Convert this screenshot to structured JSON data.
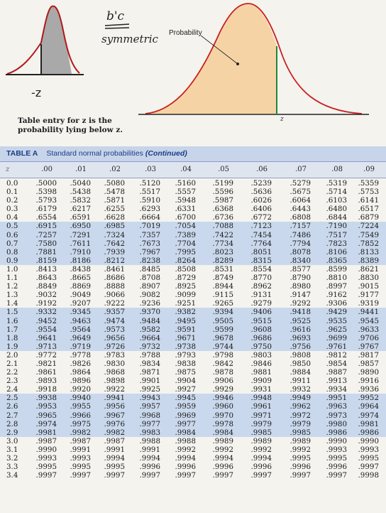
{
  "handwritten_annotation": "b'c symmetric",
  "left_sketch_label": "-z",
  "chart_labels": {
    "probability_label": "Probability",
    "z_label": "z"
  },
  "caption": {
    "line1": "Table entry for z is the",
    "line2": "probability lying below z."
  },
  "table": {
    "title_label": "TABLE A",
    "title_text": "Standard normal probabilities",
    "title_continued": "(Continued)",
    "z_header": "z",
    "columns": [
      ".00",
      ".01",
      ".02",
      ".03",
      ".04",
      ".05",
      ".06",
      ".07",
      ".08",
      ".09"
    ],
    "rows": [
      {
        "z": "0.0",
        "v": [
          ".5000",
          ".5040",
          ".5080",
          ".5120",
          ".5160",
          ".5199",
          ".5239",
          ".5279",
          ".5319",
          ".5359"
        ]
      },
      {
        "z": "0.1",
        "v": [
          ".5398",
          ".5438",
          ".5478",
          ".5517",
          ".5557",
          ".5596",
          ".5636",
          ".5675",
          ".5714",
          ".5753"
        ]
      },
      {
        "z": "0.2",
        "v": [
          ".5793",
          ".5832",
          ".5871",
          ".5910",
          ".5948",
          ".5987",
          ".6026",
          ".6064",
          ".6103",
          ".6141"
        ]
      },
      {
        "z": "0.3",
        "v": [
          ".6179",
          ".6217",
          ".6255",
          ".6293",
          ".6331",
          ".6368",
          ".6406",
          ".6443",
          ".6480",
          ".6517"
        ]
      },
      {
        "z": "0.4",
        "v": [
          ".6554",
          ".6591",
          ".6628",
          ".6664",
          ".6700",
          ".6736",
          ".6772",
          ".6808",
          ".6844",
          ".6879"
        ]
      },
      {
        "z": "0.5",
        "v": [
          ".6915",
          ".6950",
          ".6985",
          ".7019",
          ".7054",
          ".7088",
          ".7123",
          ".7157",
          ".7190",
          ".7224"
        ]
      },
      {
        "z": "0.6",
        "v": [
          ".7257",
          ".7291",
          ".7324",
          ".7357",
          ".7389",
          ".7422",
          ".7454",
          ".7486",
          ".7517",
          ".7549"
        ]
      },
      {
        "z": "0.7",
        "v": [
          ".7580",
          ".7611",
          ".7642",
          ".7673",
          ".7704",
          ".7734",
          ".7764",
          ".7794",
          ".7823",
          ".7852"
        ]
      },
      {
        "z": "0.8",
        "v": [
          ".7881",
          ".7910",
          ".7939",
          ".7967",
          ".7995",
          ".8023",
          ".8051",
          ".8078",
          ".8106",
          ".8133"
        ]
      },
      {
        "z": "0.9",
        "v": [
          ".8159",
          ".8186",
          ".8212",
          ".8238",
          ".8264",
          ".8289",
          ".8315",
          ".8340",
          ".8365",
          ".8389"
        ]
      },
      {
        "z": "1.0",
        "v": [
          ".8413",
          ".8438",
          ".8461",
          ".8485",
          ".8508",
          ".8531",
          ".8554",
          ".8577",
          ".8599",
          ".8621"
        ]
      },
      {
        "z": "1.1",
        "v": [
          ".8643",
          ".8665",
          ".8686",
          ".8708",
          ".8729",
          ".8749",
          ".8770",
          ".8790",
          ".8810",
          ".8830"
        ]
      },
      {
        "z": "1.2",
        "v": [
          ".8849",
          ".8869",
          ".8888",
          ".8907",
          ".8925",
          ".8944",
          ".8962",
          ".8980",
          ".8997",
          ".9015"
        ]
      },
      {
        "z": "1.3",
        "v": [
          ".9032",
          ".9049",
          ".9066",
          ".9082",
          ".9099",
          ".9115",
          ".9131",
          ".9147",
          ".9162",
          ".9177"
        ]
      },
      {
        "z": "1.4",
        "v": [
          ".9192",
          ".9207",
          ".9222",
          ".9236",
          ".9251",
          ".9265",
          ".9279",
          ".9292",
          ".9306",
          ".9319"
        ]
      },
      {
        "z": "1.5",
        "v": [
          ".9332",
          ".9345",
          ".9357",
          ".9370",
          ".9382",
          ".9394",
          ".9406",
          ".9418",
          ".9429",
          ".9441"
        ]
      },
      {
        "z": "1.6",
        "v": [
          ".9452",
          ".9463",
          ".9474",
          ".9484",
          ".9495",
          ".9505",
          ".9515",
          ".9525",
          ".9535",
          ".9545"
        ]
      },
      {
        "z": "1.7",
        "v": [
          ".9554",
          ".9564",
          ".9573",
          ".9582",
          ".9591",
          ".9599",
          ".9608",
          ".9616",
          ".9625",
          ".9633"
        ]
      },
      {
        "z": "1.8",
        "v": [
          ".9641",
          ".9649",
          ".9656",
          ".9664",
          ".9671",
          ".9678",
          ".9686",
          ".9693",
          ".9699",
          ".9706"
        ]
      },
      {
        "z": "1.9",
        "v": [
          ".9713",
          ".9719",
          ".9726",
          ".9732",
          ".9738",
          ".9744",
          ".9750",
          ".9756",
          ".9761",
          ".9767"
        ]
      },
      {
        "z": "2.0",
        "v": [
          ".9772",
          ".9778",
          ".9783",
          ".9788",
          ".9793",
          ".9798",
          ".9803",
          ".9808",
          ".9812",
          ".9817"
        ]
      },
      {
        "z": "2.1",
        "v": [
          ".9821",
          ".9826",
          ".9830",
          ".9834",
          ".9838",
          ".9842",
          ".9846",
          ".9850",
          ".9854",
          ".9857"
        ]
      },
      {
        "z": "2.2",
        "v": [
          ".9861",
          ".9864",
          ".9868",
          ".9871",
          ".9875",
          ".9878",
          ".9881",
          ".9884",
          ".9887",
          ".9890"
        ]
      },
      {
        "z": "2.3",
        "v": [
          ".9893",
          ".9896",
          ".9898",
          ".9901",
          ".9904",
          ".9906",
          ".9909",
          ".9911",
          ".9913",
          ".9916"
        ]
      },
      {
        "z": "2.4",
        "v": [
          ".9918",
          ".9920",
          ".9922",
          ".9925",
          ".9927",
          ".9929",
          ".9931",
          ".9932",
          ".9934",
          ".9936"
        ]
      },
      {
        "z": "2.5",
        "v": [
          ".9938",
          ".9940",
          ".9941",
          ".9943",
          ".9945",
          ".9946",
          ".9948",
          ".9949",
          ".9951",
          ".9952"
        ]
      },
      {
        "z": "2.6",
        "v": [
          ".9953",
          ".9955",
          ".9956",
          ".9957",
          ".9959",
          ".9960",
          ".9961",
          ".9962",
          ".9963",
          ".9964"
        ]
      },
      {
        "z": "2.7",
        "v": [
          ".9965",
          ".9966",
          ".9967",
          ".9968",
          ".9969",
          ".9970",
          ".9971",
          ".9972",
          ".9973",
          ".9974"
        ]
      },
      {
        "z": "2.8",
        "v": [
          ".9974",
          ".9975",
          ".9976",
          ".9977",
          ".9977",
          ".9978",
          ".9979",
          ".9979",
          ".9980",
          ".9981"
        ]
      },
      {
        "z": "2.9",
        "v": [
          ".9981",
          ".9982",
          ".9982",
          ".9983",
          ".9984",
          ".9984",
          ".9985",
          ".9985",
          ".9986",
          ".9986"
        ]
      },
      {
        "z": "3.0",
        "v": [
          ".9987",
          ".9987",
          ".9987",
          ".9988",
          ".9988",
          ".9989",
          ".9989",
          ".9989",
          ".9990",
          ".9990"
        ]
      },
      {
        "z": "3.1",
        "v": [
          ".9990",
          ".9991",
          ".9991",
          ".9991",
          ".9992",
          ".9992",
          ".9992",
          ".9992",
          ".9993",
          ".9993"
        ]
      },
      {
        "z": "3.2",
        "v": [
          ".9993",
          ".9993",
          ".9994",
          ".9994",
          ".9994",
          ".9994",
          ".9994",
          ".9995",
          ".9995",
          ".9995"
        ]
      },
      {
        "z": "3.3",
        "v": [
          ".9995",
          ".9995",
          ".9995",
          ".9996",
          ".9996",
          ".9996",
          ".9996",
          ".9996",
          ".9996",
          ".9997"
        ]
      },
      {
        "z": "3.4",
        "v": [
          ".9997",
          ".9997",
          ".9997",
          ".9997",
          ".9997",
          ".9997",
          ".9997",
          ".9997",
          ".9997",
          ".9998"
        ]
      }
    ]
  },
  "colors": {
    "title_band": "#c7d4ea",
    "title_text": "#1a3e84",
    "shaded_row": "#c9d8ec",
    "curve_fill": "#f6d3a4",
    "curve_stroke": "#c82020",
    "z_marker": "#1e8a3a",
    "sketch_shade": "#9a9a9a"
  }
}
